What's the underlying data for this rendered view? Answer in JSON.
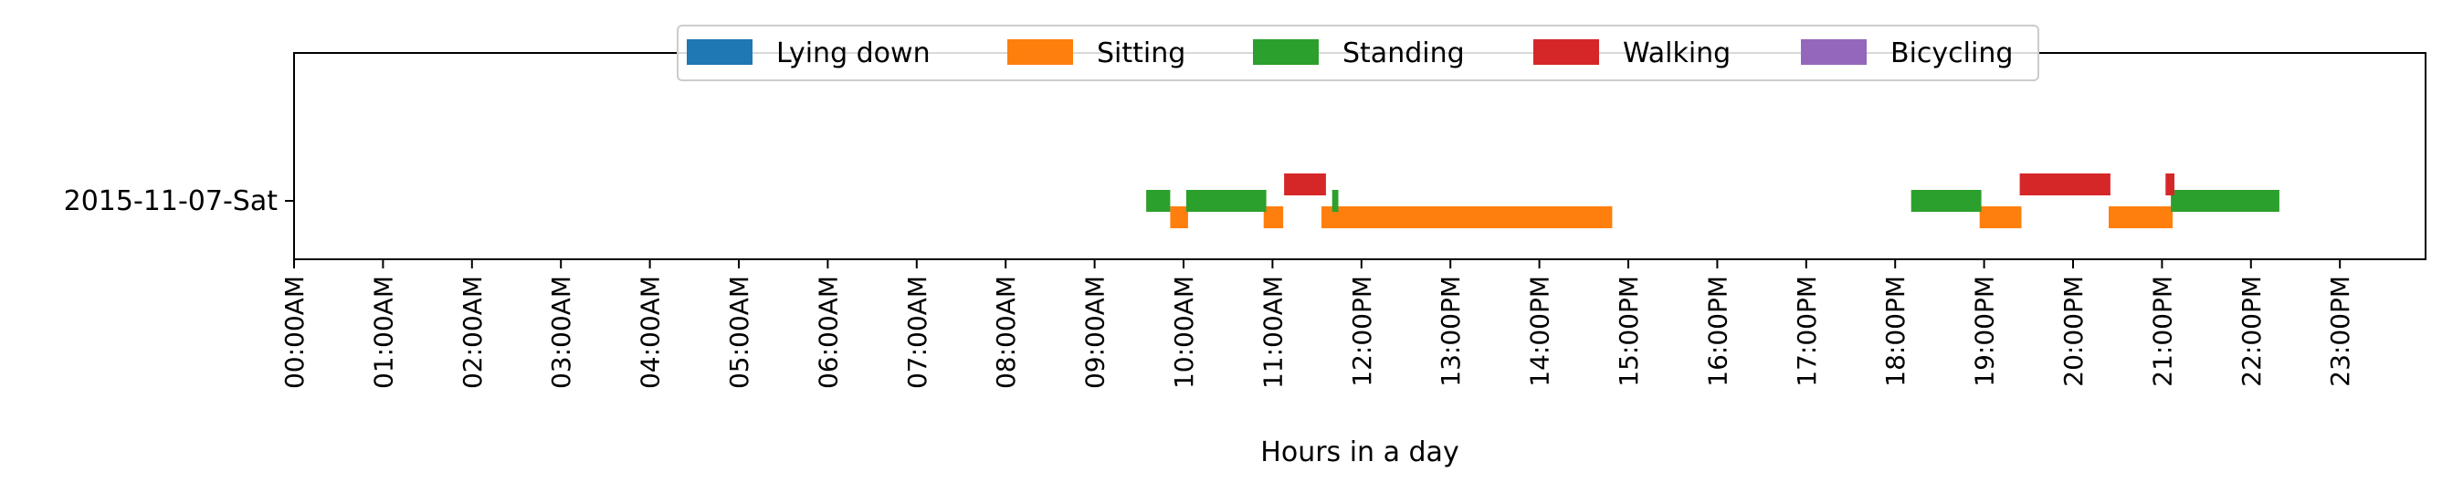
{
  "chart_data": {
    "type": "timeline",
    "ylabel_rows": [
      "2015-11-07-Sat"
    ],
    "xlabel": "Hours in a day",
    "xlim": [
      0,
      24
    ],
    "x_ticks": [
      "00:00AM",
      "01:00AM",
      "02:00AM",
      "03:00AM",
      "04:00AM",
      "05:00AM",
      "06:00AM",
      "07:00AM",
      "08:00AM",
      "09:00AM",
      "10:00AM",
      "11:00AM",
      "12:00PM",
      "13:00PM",
      "14:00PM",
      "15:00PM",
      "16:00PM",
      "17:00PM",
      "18:00PM",
      "19:00PM",
      "20:00PM",
      "21:00PM",
      "22:00PM",
      "23:00PM"
    ],
    "legend": {
      "placement": "top-center"
    },
    "series": [
      {
        "name": "Lying down",
        "color": "#1f77b4",
        "level": 0,
        "intervals": []
      },
      {
        "name": "Sitting",
        "color": "#ff7f0e",
        "level": -1,
        "intervals": [
          [
            9.85,
            10.05
          ],
          [
            10.9,
            11.12
          ],
          [
            11.55,
            11.72
          ],
          [
            11.72,
            14.82
          ],
          [
            18.95,
            19.42
          ],
          [
            20.4,
            21.12
          ]
        ]
      },
      {
        "name": "Standing",
        "color": "#2ca02c",
        "level": 0,
        "intervals": [
          [
            9.58,
            9.85
          ],
          [
            10.03,
            10.93
          ],
          [
            11.67,
            11.74
          ],
          [
            18.18,
            18.97
          ],
          [
            21.1,
            22.32
          ]
        ]
      },
      {
        "name": "Walking",
        "color": "#d62728",
        "level": 1,
        "intervals": [
          [
            11.13,
            11.6
          ],
          [
            19.4,
            20.42
          ],
          [
            21.04,
            21.14
          ]
        ]
      },
      {
        "name": "Bicycling",
        "color": "#9467bd",
        "level": 0,
        "intervals": []
      }
    ]
  }
}
